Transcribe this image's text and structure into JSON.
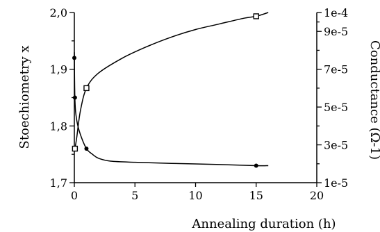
{
  "chart_data": {
    "type": "line",
    "xlabel": "Annealing duration (h)",
    "ylabel_left": "Stoechiometry x",
    "ylabel_right": "Conductance (Ω-1)",
    "xlim": [
      0,
      20
    ],
    "ylim_left": [
      1.7,
      2.0
    ],
    "ylim_right": [
      1e-05,
      0.0001
    ],
    "x_ticks": [
      0,
      5,
      10,
      15,
      20
    ],
    "x_tick_labels": [
      "0",
      "5",
      "10",
      "15",
      "20"
    ],
    "y_left_ticks": [
      1.7,
      1.8,
      1.9,
      2.0
    ],
    "y_left_tick_labels": [
      "1,7",
      "1,8",
      "1,9",
      "2,0"
    ],
    "y_right_ticks": [
      1e-05,
      3e-05,
      5e-05,
      7e-05,
      9e-05,
      0.0001
    ],
    "y_right_tick_labels": [
      "1e-5",
      "3e-5",
      "5e-5",
      "7e-5",
      "9e-5",
      "1e-4"
    ],
    "grid": false,
    "series": [
      {
        "axis": "left",
        "marker": "filled-circle",
        "points": [
          {
            "x": 0.0,
            "y": 1.92
          },
          {
            "x": 0.05,
            "y": 1.85
          },
          {
            "x": 1.0,
            "y": 1.76
          },
          {
            "x": 15.0,
            "y": 1.73
          }
        ],
        "curve": [
          [
            0.0,
            1.93
          ],
          [
            0.05,
            1.845
          ],
          [
            0.2,
            1.81
          ],
          [
            0.5,
            1.785
          ],
          [
            1.0,
            1.76
          ],
          [
            1.5,
            1.75
          ],
          [
            2.0,
            1.743
          ],
          [
            3.0,
            1.738
          ],
          [
            5.0,
            1.736
          ],
          [
            8.0,
            1.734
          ],
          [
            12.0,
            1.732
          ],
          [
            15.0,
            1.73
          ],
          [
            16.0,
            1.73
          ]
        ]
      },
      {
        "axis": "right",
        "marker": "open-square",
        "points": [
          {
            "x": 0.05,
            "y": 2.8e-05
          },
          {
            "x": 1.0,
            "y": 6e-05
          },
          {
            "x": 15.0,
            "y": 9.8e-05
          }
        ],
        "curve": [
          [
            0.05,
            2.8e-05
          ],
          [
            0.2,
            3.4e-05
          ],
          [
            0.5,
            4.8e-05
          ],
          [
            1.0,
            6e-05
          ],
          [
            2.0,
            6.8e-05
          ],
          [
            4.0,
            7.6e-05
          ],
          [
            6.0,
            8.2e-05
          ],
          [
            8.0,
            8.7e-05
          ],
          [
            10.0,
            9.1e-05
          ],
          [
            12.0,
            9.4e-05
          ],
          [
            14.0,
            9.7e-05
          ],
          [
            15.0,
            9.8e-05
          ],
          [
            16.0,
            0.0001
          ]
        ]
      }
    ]
  }
}
